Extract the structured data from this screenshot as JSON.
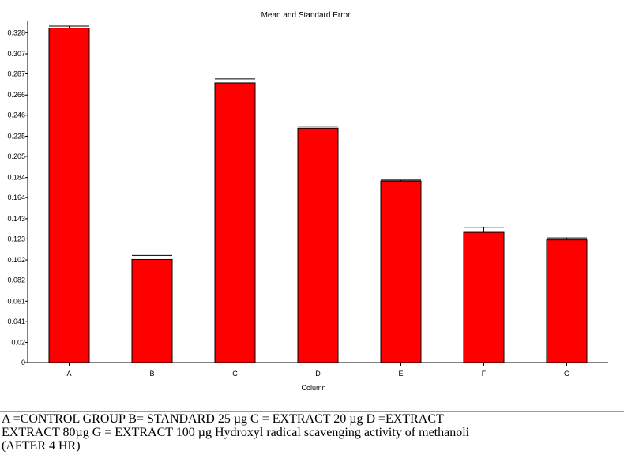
{
  "chart_data": {
    "type": "bar",
    "title": "Mean and Standard Error",
    "xlabel": "Column",
    "ylabel": "",
    "categories": [
      "A",
      "B",
      "C",
      "D",
      "E",
      "F",
      "G"
    ],
    "values": [
      0.3325,
      0.1025,
      0.278,
      0.233,
      0.1805,
      0.1295,
      0.122
    ],
    "errors": [
      0.002,
      0.004,
      0.004,
      0.002,
      0.001,
      0.005,
      0.002
    ],
    "ytick_labels": [
      "0",
      "0.02",
      "0.041",
      "0.061",
      "0.082",
      "0.102",
      "0.123",
      "0.143",
      "0.164",
      "0.184",
      "0.205",
      "0.225",
      "0.246",
      "0.266",
      "0.287",
      "0.307",
      "0.328"
    ],
    "ylim": [
      0,
      0.34
    ],
    "bar_color": "#ff0000",
    "grid": false,
    "legend": "none"
  },
  "caption": {
    "line1": "A =CONTROL GROUP B= STANDARD 25 µg C = EXTRACT 20 µg D =EXTRACT",
    "line2": "EXTRACT 80µg G = EXTRACT 100 µg Hydroxyl radical scavenging activity of methanoli",
    "line3": "(AFTER 4 HR)"
  }
}
